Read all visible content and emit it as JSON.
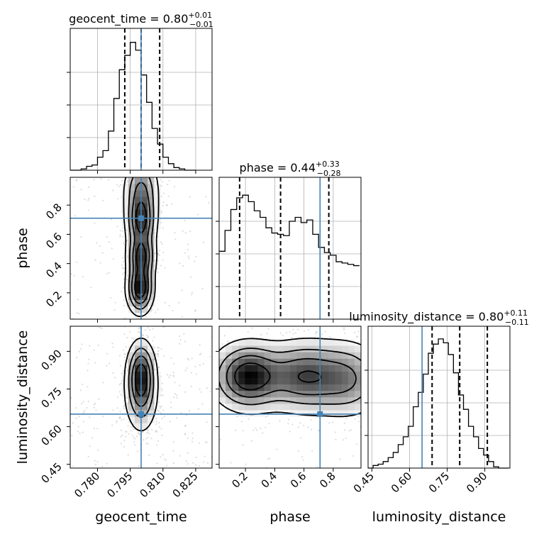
{
  "colors": {
    "truth": "#4682b4",
    "hist": "#000000",
    "grid": "#b0b0b0",
    "scatter": "#9e9e9e"
  },
  "chart_data": {
    "type": "corner",
    "parameters": [
      "geocent_time",
      "phase",
      "luminosity_distance"
    ],
    "titles": {
      "geocent_time": {
        "name": "geocent_time",
        "median": "0.80",
        "plus": "+0.01",
        "minus": "−0.01"
      },
      "phase": {
        "name": "phase",
        "median": "0.44",
        "plus": "+0.33",
        "minus": "−0.28"
      },
      "luminosity_distance": {
        "name": "luminosity_distance",
        "median": "0.80",
        "plus": "+0.11",
        "minus": "−0.11"
      }
    },
    "axis_labels": {
      "geocent_time": "geocent_time",
      "phase": "phase",
      "luminosity_distance": "luminosity_distance"
    },
    "ranges": {
      "geocent_time": [
        0.7675,
        0.8325
      ],
      "phase": [
        0.02,
        0.99
      ],
      "luminosity_distance": [
        0.435,
        1.0
      ]
    },
    "ticks": {
      "geocent_time": [
        "0.780",
        "0.795",
        "0.810",
        "0.825"
      ],
      "phase": [
        "0.2",
        "0.4",
        "0.6",
        "0.8"
      ],
      "luminosity_distance": [
        "0.45",
        "0.60",
        "0.75",
        "0.90"
      ]
    },
    "truths": {
      "geocent_time": 0.8,
      "phase": 0.71,
      "luminosity_distance": 0.65
    },
    "quantiles": {
      "geocent_time": [
        0.7925,
        0.8,
        0.8085
      ],
      "phase": [
        0.16,
        0.44,
        0.77
      ],
      "luminosity_distance": [
        0.69,
        0.8,
        0.91
      ]
    },
    "histograms": {
      "geocent_time": {
        "bin_start": 0.7675,
        "bin_width": 0.0025,
        "counts": [
          0.0,
          0.0,
          0.01,
          0.03,
          0.04,
          0.1,
          0.15,
          0.3,
          0.55,
          0.77,
          0.88,
          0.98,
          0.92,
          0.73,
          0.52,
          0.32,
          0.2,
          0.1,
          0.05,
          0.02,
          0.01,
          0.0,
          0.0
        ]
      },
      "phase": {
        "bin_start": 0.02,
        "bin_width": 0.04,
        "counts": [
          0.52,
          0.68,
          0.84,
          0.93,
          0.95,
          0.9,
          0.83,
          0.78,
          0.7,
          0.66,
          0.65,
          0.64,
          0.75,
          0.78,
          0.74,
          0.76,
          0.65,
          0.55,
          0.51,
          0.49,
          0.44,
          0.43,
          0.42,
          0.41
        ]
      },
      "luminosity_distance": {
        "bin_start": 0.435,
        "bin_width": 0.02,
        "counts": [
          0.0,
          0.02,
          0.03,
          0.05,
          0.08,
          0.12,
          0.18,
          0.24,
          0.32,
          0.47,
          0.58,
          0.72,
          0.88,
          0.95,
          0.99,
          0.96,
          0.87,
          0.73,
          0.56,
          0.45,
          0.32,
          0.24,
          0.15,
          0.1,
          0.05,
          0.01,
          0.0,
          0.0
        ]
      }
    },
    "density_peaks": {
      "phase_vs_geocent_time": [
        {
          "x": 0.7995,
          "y": 0.23,
          "sx": 0.0032,
          "sy": 0.09,
          "w": 1.0
        },
        {
          "x": 0.8,
          "y": 0.45,
          "sx": 0.0034,
          "sy": 0.09,
          "w": 0.85
        },
        {
          "x": 0.8,
          "y": 0.69,
          "sx": 0.0036,
          "sy": 0.1,
          "w": 0.8
        },
        {
          "x": 0.8,
          "y": 0.9,
          "sx": 0.0042,
          "sy": 0.12,
          "w": 0.55
        }
      ],
      "luminosity_distance_vs_geocent_time": [
        {
          "x": 0.8,
          "y": 0.81,
          "sx": 0.0034,
          "sy": 0.07,
          "w": 1.0
        },
        {
          "x": 0.8,
          "y": 0.72,
          "sx": 0.004,
          "sy": 0.08,
          "w": 0.55
        }
      ],
      "luminosity_distance_vs_phase": [
        {
          "x": 0.22,
          "y": 0.8,
          "sx": 0.13,
          "sy": 0.07,
          "w": 1.0
        },
        {
          "x": 0.6,
          "y": 0.8,
          "sx": 0.16,
          "sy": 0.075,
          "w": 0.75
        },
        {
          "x": 0.9,
          "y": 0.79,
          "sx": 0.14,
          "sy": 0.08,
          "w": 0.5
        }
      ]
    },
    "contour_levels": [
      0.75,
      0.5,
      0.28,
      0.1
    ],
    "grid": true
  }
}
